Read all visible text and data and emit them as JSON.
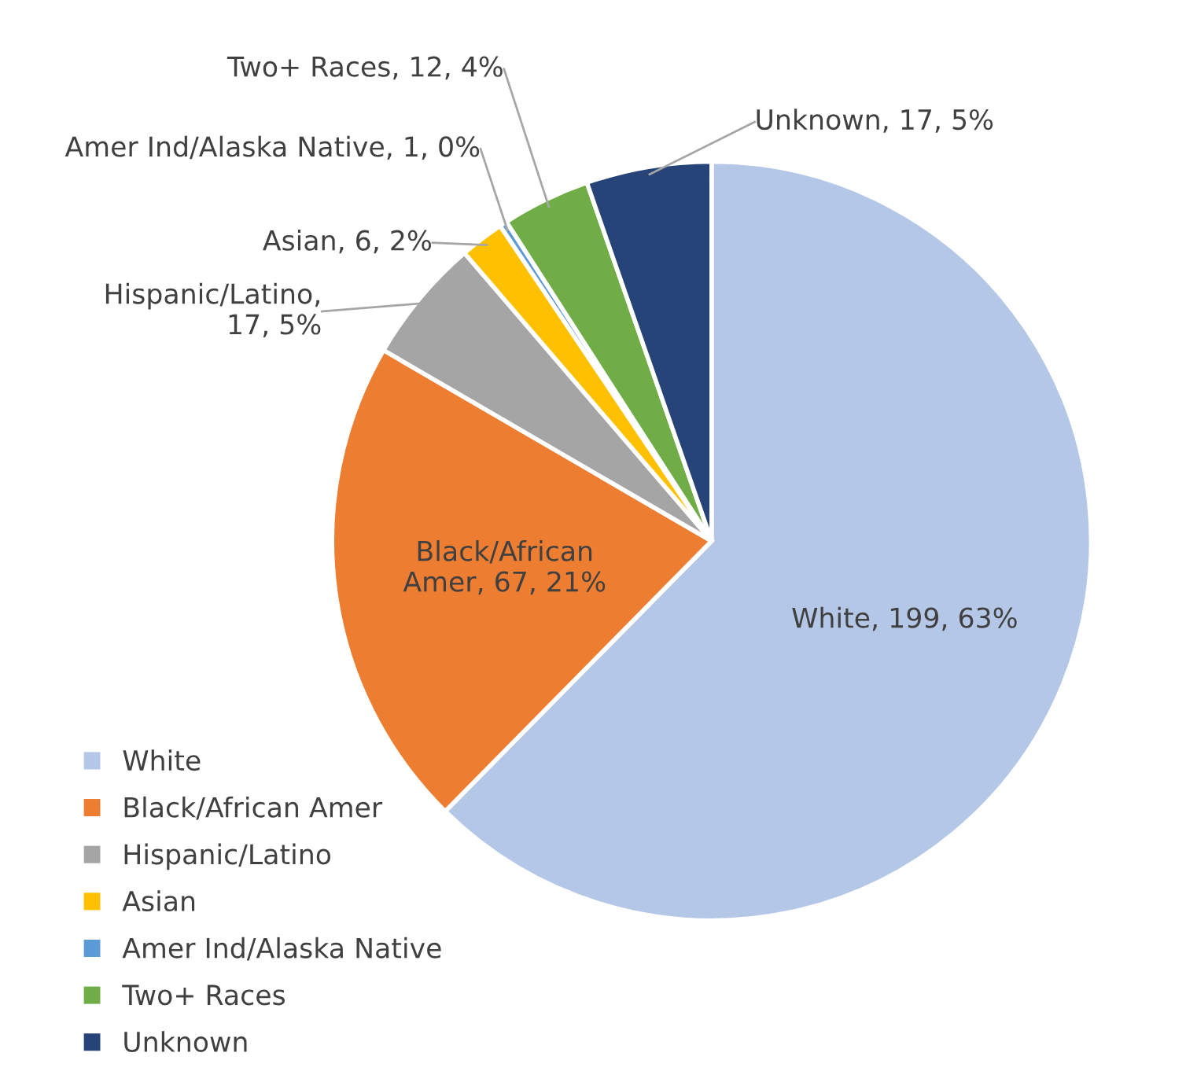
{
  "chart_data": {
    "type": "pie",
    "categories": [
      "White",
      "Black/African Amer",
      "Hispanic/Latino",
      "Asian",
      "Amer Ind/Alaska Native",
      "Two+ Races",
      "Unknown"
    ],
    "values": [
      199,
      67,
      17,
      6,
      1,
      12,
      17
    ],
    "colors": [
      "#b4c7e7",
      "#ed7d31",
      "#a5a5a5",
      "#ffc000",
      "#5b9bd5",
      "#70ad47",
      "#264478"
    ],
    "value_labels": [
      "White, 199, 63%",
      "Black/African\nAmer, 67, 21%",
      "Hispanic/Latino,\n17, 5%",
      "Asian, 6, 2%",
      "Amer Ind/Alaska Native, 1, 0%",
      "Two+ Races, 12, 4%",
      "Unknown, 17, 5%"
    ],
    "legend": "bottom left"
  }
}
